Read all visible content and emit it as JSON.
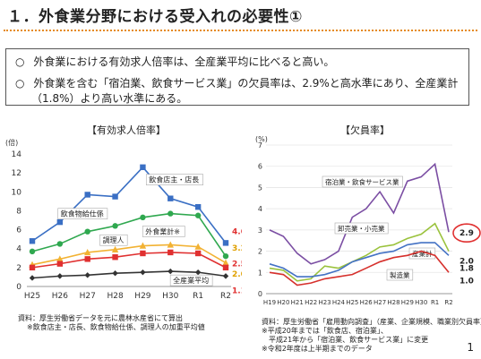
{
  "header": {
    "title": "１．外食業分野における受入れの必要性①"
  },
  "summary": {
    "bullet_marker": "○",
    "bullet1": "外食業における有効求人倍率は、全産業平均に比べると高い。",
    "bullet2_line1": "外食業を含む「宿泊業、飲食サービス業」の欠員率は、2.9%と高水準にあり、全産業計",
    "bullet2_line2": "（1.8%）より高い水準にある。"
  },
  "colors": {
    "accent": "#e58a1f"
  },
  "chart_data": [
    {
      "type": "line",
      "title": "【有効求人倍率】",
      "ylabel": "(倍)",
      "ylim": [
        0,
        14
      ],
      "yticks": [
        0,
        2,
        4,
        6,
        8,
        10,
        12,
        14
      ],
      "categories": [
        "H25",
        "H26",
        "H27",
        "H28",
        "H29",
        "H30",
        "R1",
        "R2"
      ],
      "series": [
        {
          "name": "飲食店主・店長",
          "color": "#3a6fc4",
          "marker": "square",
          "values": [
            4.8,
            6.8,
            9.7,
            9.5,
            12.6,
            9.3,
            8.4,
            4.6
          ],
          "end_label": "4.6",
          "end_color": "#e03030"
        },
        {
          "name": "飲食物給仕係",
          "color": "#2fa84f",
          "marker": "circle",
          "values": [
            3.7,
            4.5,
            5.8,
            6.4,
            7.3,
            7.7,
            7.5,
            3.2
          ],
          "end_label": "3.2",
          "end_color": "#e0a000"
        },
        {
          "name": "外食業計※",
          "color": "#f2b233",
          "marker": "triangle",
          "values": [
            2.3,
            2.9,
            3.6,
            3.9,
            4.3,
            4.4,
            4.2,
            2.5
          ],
          "end_label": "2.5",
          "end_color": "#e03030"
        },
        {
          "name": "調理人",
          "color": "#e03030",
          "marker": "square",
          "values": [
            2.0,
            2.4,
            2.9,
            3.1,
            3.5,
            3.6,
            3.5,
            2.0
          ],
          "end_label": "2.0",
          "end_color": "#e0a000"
        },
        {
          "name": "全産業平均",
          "color": "#333333",
          "marker": "diamond",
          "values": [
            0.9,
            1.1,
            1.2,
            1.4,
            1.5,
            1.6,
            1.5,
            1.1
          ],
          "end_label": "1.1",
          "end_color": "#e03030"
        }
      ],
      "source_lines": [
        "資料：厚生労働省データを元に農林水産省にて算出",
        "※飲食店主・店長、飲食物給仕係、調理人の加重平均値"
      ]
    },
    {
      "type": "line",
      "title": "【欠員率】",
      "ylabel": "(%)",
      "ylim": [
        0,
        7
      ],
      "yticks": [
        0,
        1,
        2,
        3,
        4,
        5,
        6,
        7
      ],
      "categories": [
        "H19",
        "H20",
        "H21",
        "H22",
        "H23",
        "H24",
        "H25",
        "H26",
        "H27",
        "H28",
        "H29",
        "H30",
        "R1",
        "R2"
      ],
      "series": [
        {
          "name": "宿泊業・飲食サービス業",
          "color": "#7b4ea3",
          "values": [
            3.0,
            2.7,
            1.9,
            1.4,
            1.6,
            2.0,
            3.6,
            4.0,
            4.8,
            3.8,
            5.3,
            5.5,
            6.1,
            2.9
          ],
          "end_label": "2.9"
        },
        {
          "name": "卸売業・小売業",
          "color": "#9ac23c",
          "values": [
            1.2,
            1.1,
            0.6,
            0.7,
            1.3,
            1.2,
            1.5,
            1.8,
            2.2,
            2.3,
            2.6,
            2.8,
            3.3,
            2.0
          ],
          "end_label": "2.0"
        },
        {
          "name": "産業計",
          "color": "#4472c4",
          "values": [
            1.4,
            1.2,
            0.8,
            0.8,
            0.9,
            1.1,
            1.5,
            1.7,
            1.9,
            2.0,
            2.3,
            2.4,
            2.4,
            1.8
          ],
          "end_label": "1.8"
        },
        {
          "name": "製造業",
          "color": "#d6302c",
          "values": [
            1.0,
            0.9,
            0.4,
            0.5,
            0.7,
            0.8,
            0.9,
            1.2,
            1.5,
            1.7,
            1.8,
            2.0,
            1.8,
            1.0
          ],
          "end_label": "1.0"
        }
      ],
      "source_lines": [
        "資料：厚生労働省「雇用動向調査」（産業、企業規模、職業別欠員率）",
        "※平成20年までは「飲食店、宿泊業」、",
        "　平成21年から「宿泊業、飲食サービス業」に変更",
        "※令和2年度は上半期までのデータ"
      ]
    }
  ],
  "page": {
    "number": "1"
  }
}
